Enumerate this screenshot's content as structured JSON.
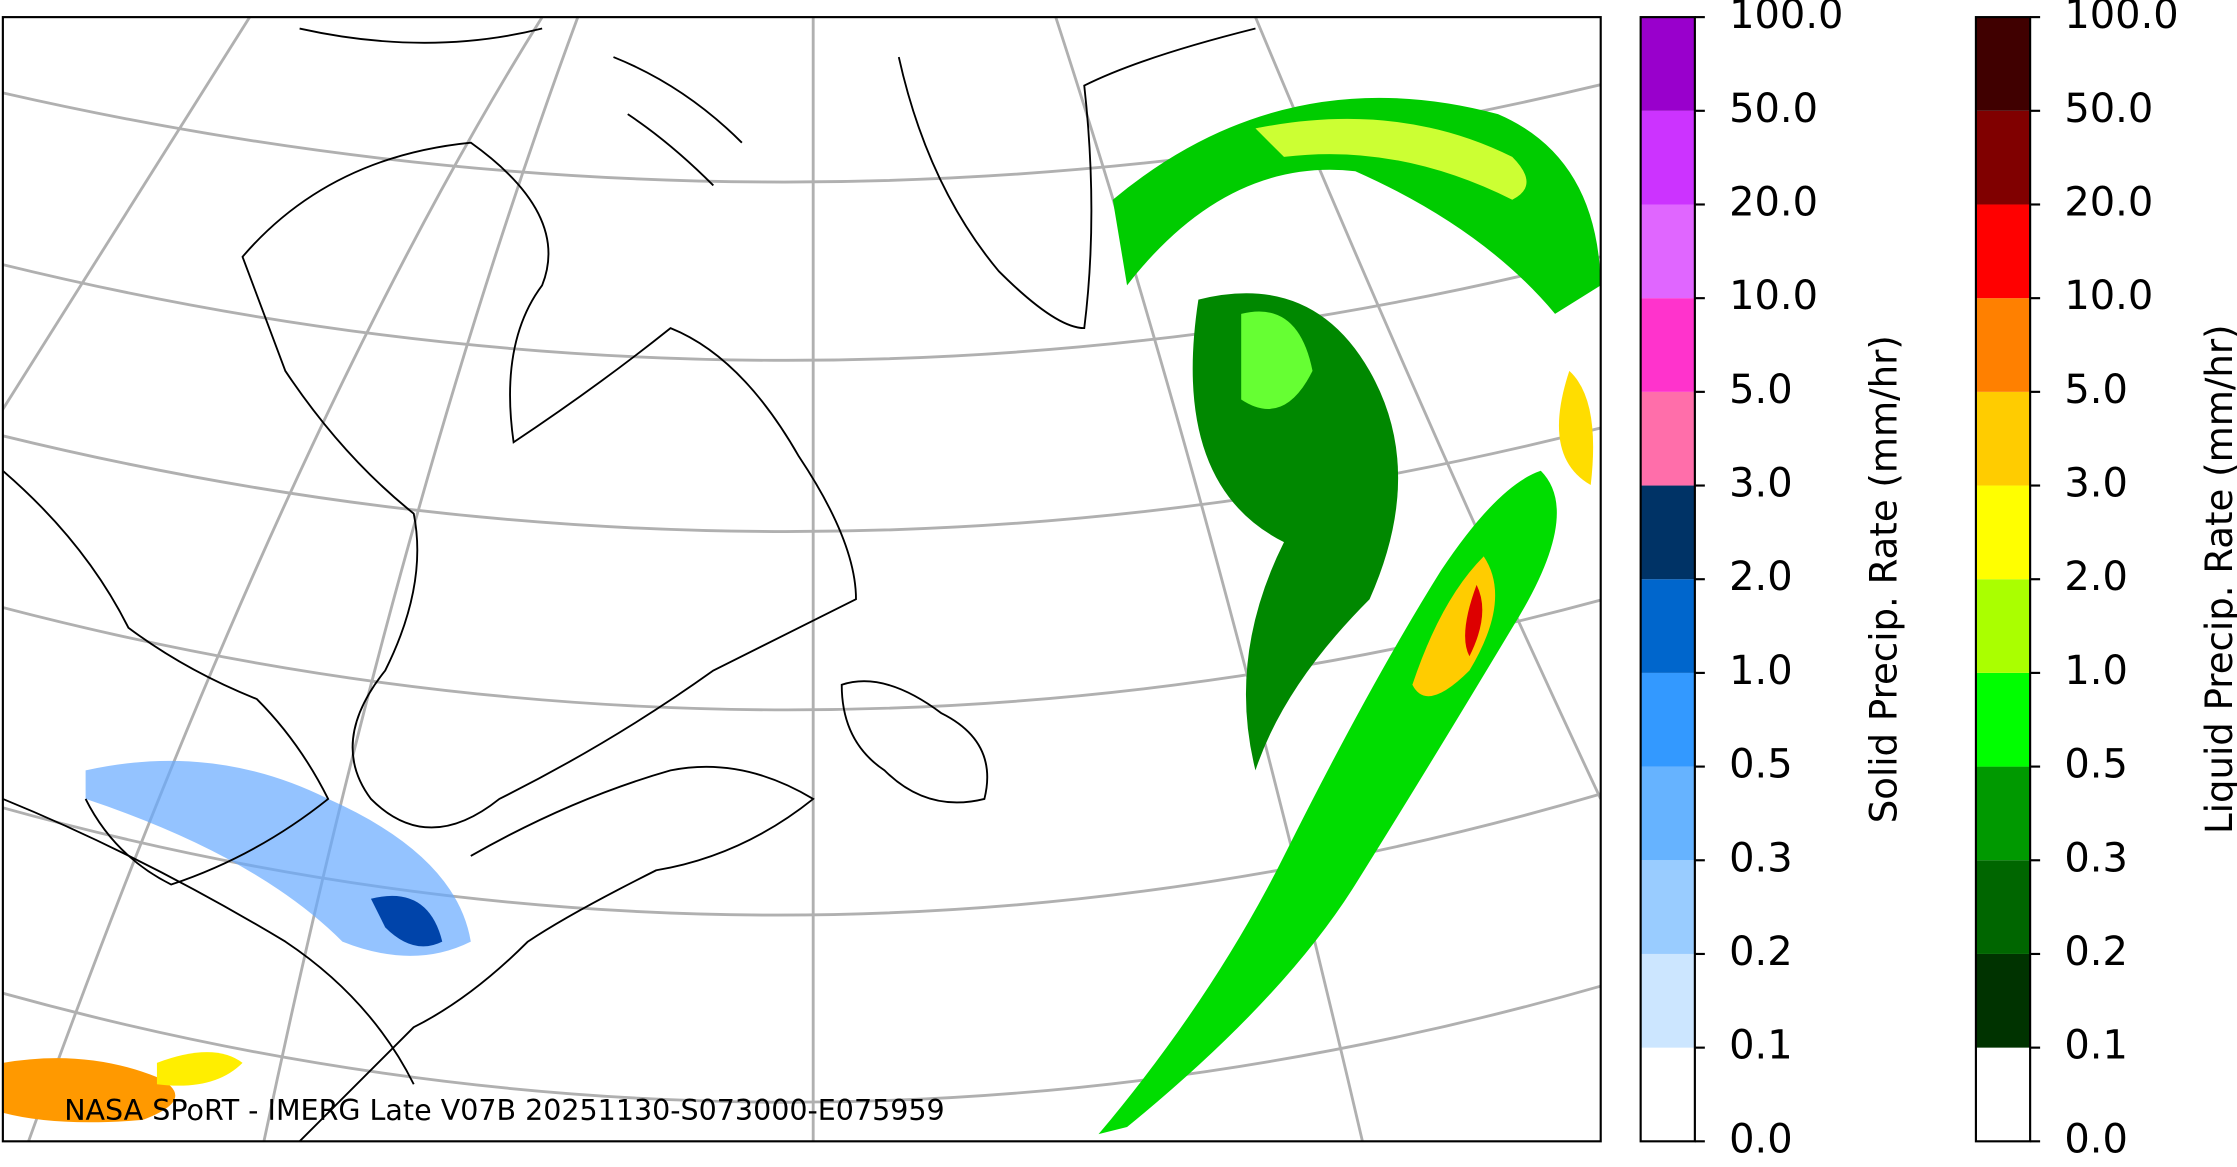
{
  "map": {
    "caption": "NASA SPoRT - IMERG Late V07B 20251130-S073000-E075959"
  },
  "colorbars": [
    {
      "label": "Solid Precip. Rate (mm/hr)",
      "ticks": [
        "0.0",
        "0.1",
        "0.2",
        "0.3",
        "0.5",
        "1.0",
        "2.0",
        "3.0",
        "5.0",
        "10.0",
        "20.0",
        "50.0",
        "100.0"
      ],
      "colors": [
        "#ffffff",
        "#cce6ff",
        "#99ccff",
        "#66b3ff",
        "#3399ff",
        "#0066cc",
        "#003366",
        "#ff6eaa",
        "#ff33cc",
        "#e066ff",
        "#cc33ff",
        "#9900cc"
      ]
    },
    {
      "label": "Liquid Precip. Rate (mm/hr)",
      "ticks": [
        "0.0",
        "0.1",
        "0.2",
        "0.3",
        "0.5",
        "1.0",
        "2.0",
        "3.0",
        "5.0",
        "10.0",
        "20.0",
        "50.0",
        "100.0"
      ],
      "colors": [
        "#ffffff",
        "#003300",
        "#006600",
        "#009900",
        "#00ff00",
        "#aaff00",
        "#ffff00",
        "#ffcc00",
        "#ff8000",
        "#ff0000",
        "#800000",
        "#400000"
      ]
    }
  ]
}
